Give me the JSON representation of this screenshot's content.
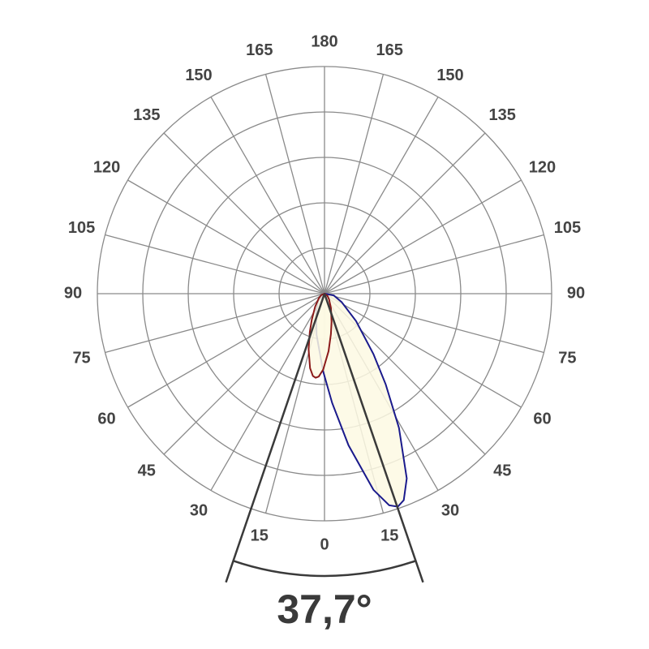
{
  "chart_data": {
    "type": "polar",
    "rlim": [
      0,
      5
    ],
    "rticks": [
      1,
      2,
      3,
      4,
      5
    ],
    "grid": true,
    "right_ticks": [
      0,
      15,
      30,
      45,
      60,
      75,
      90,
      105,
      120,
      135,
      150,
      165,
      180
    ],
    "left_ticks": [
      15,
      30,
      45,
      60,
      75,
      90,
      105,
      120,
      135,
      150,
      165
    ],
    "fill_color": "#fdf9e3",
    "series": [
      {
        "color": "#1a1a8c",
        "angles": [
          -71,
          -41,
          -26,
          -11,
          -1,
          4,
          9,
          14,
          17,
          19,
          21,
          24,
          29,
          34,
          39,
          49,
          64,
          79,
          109
        ],
        "values": [
          0,
          0.21,
          0.42,
          0.92,
          1.71,
          2.41,
          3.38,
          4.45,
          4.87,
          4.96,
          4.87,
          4.45,
          3.38,
          2.41,
          1.71,
          0.92,
          0.42,
          0.21,
          0
        ]
      },
      {
        "color": "#8b1a1a",
        "angles": [
          -96,
          -66,
          -51,
          -36,
          -26,
          -21,
          -16,
          -11,
          -8,
          -6,
          -4,
          -1,
          4,
          9,
          14,
          24,
          39,
          54,
          84
        ],
        "values": [
          0,
          0.08,
          0.16,
          0.35,
          0.64,
          0.9,
          1.27,
          1.67,
          1.83,
          1.86,
          1.83,
          1.67,
          1.27,
          0.9,
          0.64,
          0.35,
          0.16,
          0.08,
          0
        ]
      }
    ],
    "beam_angle": 37.7,
    "beam_label": "37,7°"
  }
}
